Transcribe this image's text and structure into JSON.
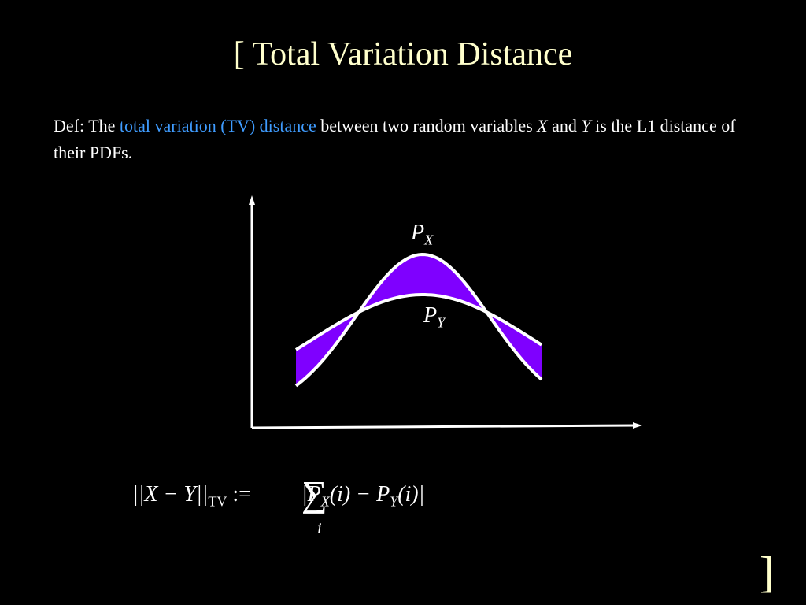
{
  "header": {
    "title": "[ Total Variation Distance"
  },
  "definition": {
    "prefix": "Def: The ",
    "term": "total variation (TV) distance",
    "middle": " between two random variables ",
    "var1": "X",
    "and": " and ",
    "var2": "Y",
    "suffix": " is the L1 distance of their PDFs."
  },
  "diagram": {
    "px": {
      "base": "P",
      "sub": "X"
    },
    "py": {
      "base": "P",
      "sub": "Y"
    }
  },
  "formula": {
    "lhs": "||X − Y||",
    "lhs_sub": "TV",
    "assign": ":=",
    "sum": "∑",
    "sum_index": "i",
    "rhs1": "|P",
    "rhs1_sub": "X",
    "rhs2": "(i) − P",
    "rhs2_sub": "Y",
    "rhs3": "(i)|"
  },
  "footer": {
    "close": "]"
  }
}
